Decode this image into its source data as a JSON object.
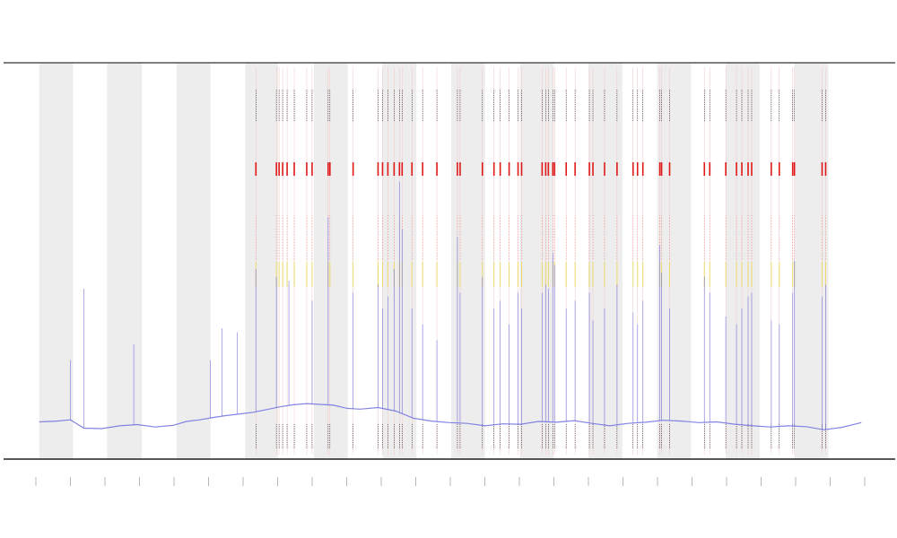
{
  "chart_data": {
    "type": "line",
    "title": "",
    "xlabel": "",
    "ylabel": "",
    "grid": false,
    "legend": "none",
    "colors": {
      "series": "#6f6fe0",
      "band": "#ededed",
      "marker_red": "#e01818",
      "marker_black": "#222222",
      "axis": "#444444"
    },
    "x_range": [
      0,
      1000
    ],
    "y_range": [
      0,
      1000
    ],
    "x_ticks": [
      "",
      "",
      "",
      "",
      "",
      "",
      "",
      "",
      "",
      "",
      "",
      "",
      "",
      "",
      "",
      "",
      "",
      "",
      "",
      "",
      "",
      "",
      "",
      "",
      ""
    ],
    "bands": [
      [
        40,
        78
      ],
      [
        116,
        155
      ],
      [
        194,
        232
      ],
      [
        271,
        308
      ],
      [
        348,
        386
      ],
      [
        425,
        463
      ],
      [
        502,
        540
      ],
      [
        579,
        617
      ],
      [
        656,
        694
      ],
      [
        733,
        771
      ],
      [
        810,
        848
      ],
      [
        887,
        925
      ]
    ],
    "red_markers": [
      283,
      306,
      309,
      313,
      318,
      326,
      340,
      346,
      364,
      366,
      392,
      420,
      425,
      431,
      438,
      444,
      447,
      458,
      470,
      486,
      509,
      512,
      537,
      550,
      557,
      567,
      577,
      581,
      604,
      608,
      611,
      616,
      618,
      631,
      641,
      657,
      661,
      674,
      688,
      706,
      711,
      717,
      736,
      738,
      747,
      786,
      792,
      810,
      822,
      828,
      835,
      839,
      861,
      870,
      885,
      887,
      918,
      922
    ],
    "series": [
      {
        "x": [
          40,
          60,
          75,
          90,
          110,
          130,
          150,
          170,
          190,
          205,
          220,
          235,
          250,
          265,
          280,
          295,
          310,
          325,
          340,
          355,
          370,
          385,
          400,
          420,
          440,
          460,
          480,
          500,
          520,
          540,
          560,
          580,
          600,
          620,
          640,
          660,
          680,
          700,
          720,
          740,
          760,
          780,
          800,
          820,
          840,
          860,
          880,
          900,
          920,
          940,
          962
        ],
        "y": [
          94,
          96,
          99,
          78,
          77,
          84,
          87,
          81,
          85,
          95,
          99,
          105,
          110,
          114,
          118,
          125,
          132,
          137,
          140,
          138,
          136,
          128,
          126,
          130,
          121,
          103,
          96,
          92,
          90,
          84,
          89,
          88,
          95,
          93,
          97,
          90,
          84,
          90,
          93,
          98,
          96,
          92,
          94,
          88,
          84,
          81,
          84,
          82,
          74,
          80,
          92
        ],
        "spikes": [
          [
            75,
            250
          ],
          [
            90,
            430
          ],
          [
            146,
            290
          ],
          [
            232,
            250
          ],
          [
            245,
            330
          ],
          [
            262,
            320
          ],
          [
            283,
            480
          ],
          [
            306,
            460
          ],
          [
            320,
            450
          ],
          [
            346,
            400
          ],
          [
            364,
            610
          ],
          [
            392,
            420
          ],
          [
            420,
            440
          ],
          [
            425,
            380
          ],
          [
            431,
            410
          ],
          [
            438,
            480
          ],
          [
            444,
            700
          ],
          [
            447,
            580
          ],
          [
            458,
            380
          ],
          [
            470,
            340
          ],
          [
            486,
            300
          ],
          [
            509,
            560
          ],
          [
            512,
            420
          ],
          [
            537,
            460
          ],
          [
            550,
            380
          ],
          [
            557,
            400
          ],
          [
            567,
            340
          ],
          [
            577,
            420
          ],
          [
            581,
            380
          ],
          [
            604,
            420
          ],
          [
            608,
            440
          ],
          [
            611,
            430
          ],
          [
            616,
            520
          ],
          [
            618,
            490
          ],
          [
            631,
            380
          ],
          [
            641,
            400
          ],
          [
            657,
            420
          ],
          [
            661,
            350
          ],
          [
            674,
            380
          ],
          [
            688,
            440
          ],
          [
            706,
            370
          ],
          [
            711,
            340
          ],
          [
            717,
            400
          ],
          [
            736,
            540
          ],
          [
            738,
            470
          ],
          [
            747,
            380
          ],
          [
            786,
            460
          ],
          [
            792,
            420
          ],
          [
            810,
            360
          ],
          [
            822,
            340
          ],
          [
            828,
            380
          ],
          [
            835,
            410
          ],
          [
            839,
            420
          ],
          [
            861,
            350
          ],
          [
            870,
            340
          ],
          [
            885,
            420
          ],
          [
            887,
            500
          ],
          [
            918,
            410
          ],
          [
            922,
            440
          ]
        ]
      }
    ]
  }
}
